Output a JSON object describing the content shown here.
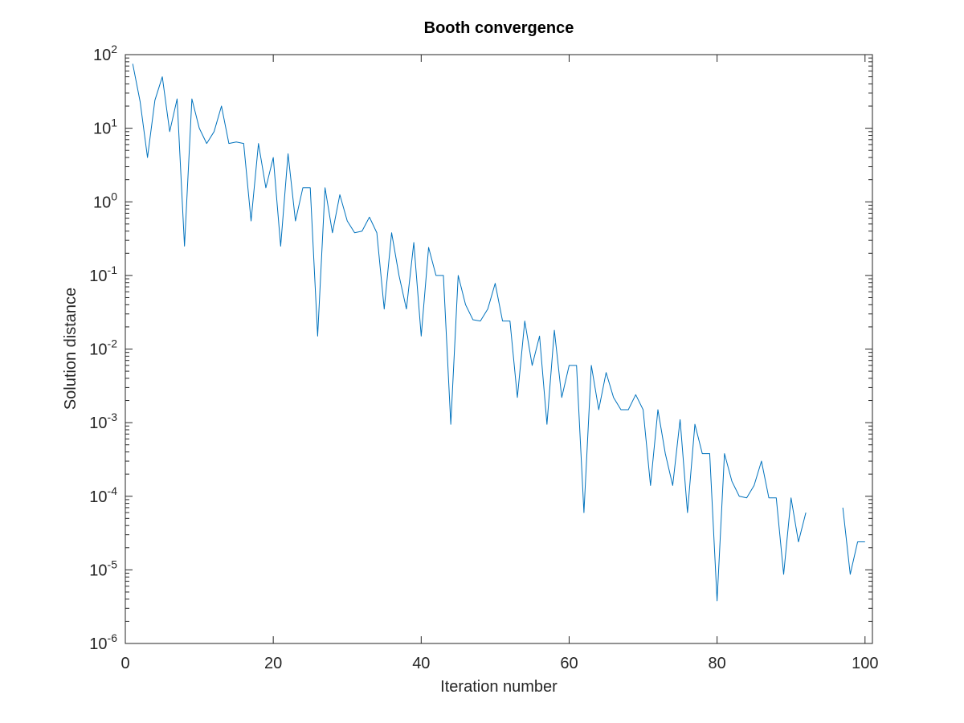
{
  "chart_data": {
    "type": "line",
    "title": "Booth convergence",
    "xlabel": "Iteration number",
    "ylabel": "Solution distance",
    "xlim": [
      0,
      101
    ],
    "ylim": [
      1e-06,
      100
    ],
    "yscale": "log",
    "grid": false,
    "color": "#0072bd",
    "x_ticks": [
      {
        "value": 0,
        "label": "0"
      },
      {
        "value": 20,
        "label": "20"
      },
      {
        "value": 40,
        "label": "40"
      },
      {
        "value": 60,
        "label": "60"
      },
      {
        "value": 80,
        "label": "80"
      },
      {
        "value": 100,
        "label": "100"
      }
    ],
    "y_ticks": [
      {
        "value": 100,
        "base": "10",
        "exp": "2"
      },
      {
        "value": 10,
        "base": "10",
        "exp": "1"
      },
      {
        "value": 1,
        "base": "10",
        "exp": "0"
      },
      {
        "value": 0.1,
        "base": "10",
        "exp": "-1"
      },
      {
        "value": 0.01,
        "base": "10",
        "exp": "-2"
      },
      {
        "value": 0.001,
        "base": "10",
        "exp": "-3"
      },
      {
        "value": 0.0001,
        "base": "10",
        "exp": "-4"
      },
      {
        "value": 1e-05,
        "base": "10",
        "exp": "-5"
      },
      {
        "value": 1e-06,
        "base": "10",
        "exp": "-6"
      }
    ],
    "x": [
      1,
      2,
      3,
      4,
      5,
      6,
      7,
      8,
      9,
      10,
      11,
      12,
      13,
      14,
      15,
      16,
      17,
      18,
      19,
      20,
      21,
      22,
      23,
      24,
      25,
      26,
      27,
      28,
      29,
      30,
      31,
      32,
      33,
      34,
      35,
      36,
      37,
      38,
      39,
      40,
      41,
      42,
      43,
      44,
      45,
      46,
      47,
      48,
      49,
      50,
      51,
      52,
      53,
      54,
      55,
      56,
      57,
      58,
      59,
      60,
      61,
      62,
      63,
      64,
      65,
      66,
      67,
      68,
      69,
      70,
      71,
      72,
      73,
      74,
      75,
      76,
      77,
      78,
      79,
      80,
      81,
      82,
      83,
      84,
      85,
      86,
      87,
      88,
      89,
      90,
      91,
      92,
      93,
      94,
      95,
      96,
      97,
      98,
      99,
      100
    ],
    "y": [
      75,
      23,
      4,
      24,
      50,
      9,
      25,
      0.25,
      25,
      10,
      6.2,
      9,
      20,
      6.2,
      6.5,
      6.2,
      0.55,
      6.2,
      1.55,
      4,
      0.25,
      4.5,
      0.55,
      1.55,
      1.55,
      0.015,
      1.55,
      0.38,
      1.25,
      0.55,
      0.38,
      0.4,
      0.62,
      0.38,
      0.035,
      0.38,
      0.1,
      0.035,
      0.28,
      0.015,
      0.24,
      0.1,
      0.1,
      0.00095,
      0.1,
      0.04,
      0.025,
      0.024,
      0.035,
      0.078,
      0.024,
      0.024,
      0.0022,
      0.024,
      0.006,
      0.015,
      0.00095,
      0.018,
      0.0022,
      0.006,
      0.006,
      6e-05,
      0.006,
      0.0015,
      0.0048,
      0.0022,
      0.0015,
      0.0015,
      0.0024,
      0.0015,
      0.00014,
      0.0015,
      0.00038,
      0.00014,
      0.0011,
      6e-05,
      0.00095,
      0.00038,
      0.00038,
      3.8e-06,
      0.00038,
      0.00016,
      0.0001,
      9.5e-05,
      0.00014,
      0.0003,
      9.5e-05,
      9.5e-05,
      8.7e-06,
      9.5e-05,
      2.4e-05,
      6e-05,
      null,
      null,
      null,
      null,
      7e-05,
      8.7e-06,
      2.4e-05,
      2.4e-05
    ]
  }
}
